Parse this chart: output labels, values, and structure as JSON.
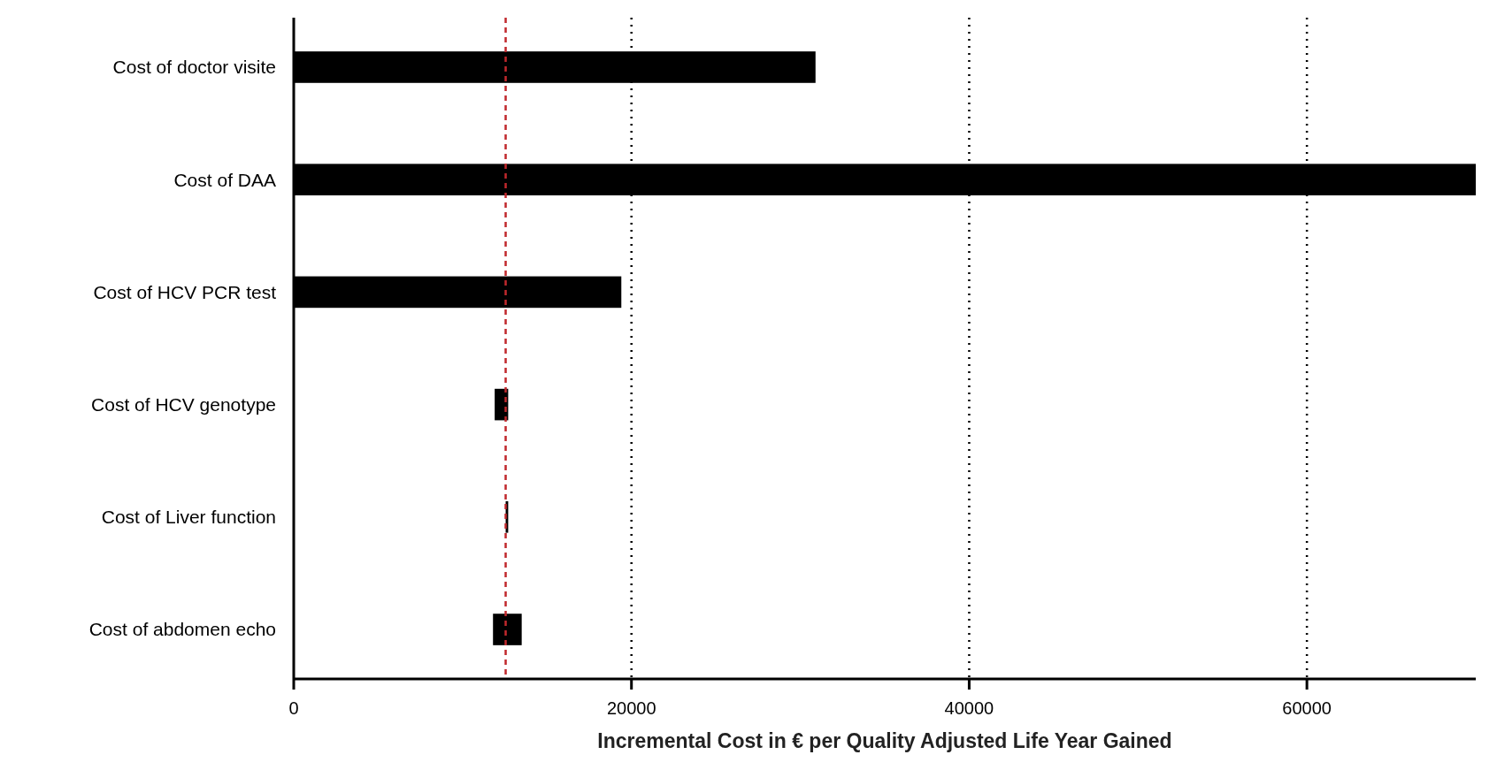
{
  "chart_data": {
    "type": "bar",
    "orientation": "horizontal",
    "categories": [
      "Cost of doctor visite",
      "Cost of DAA",
      "Cost of HCV PCR test",
      "Cost of HCV genotype",
      "Cost of Liver function",
      "Cost of abdomen echo"
    ],
    "base": [
      0,
      0,
      0,
      11900,
      12550,
      11800
    ],
    "values": [
      30900,
      70000,
      19400,
      800,
      150,
      1700
    ],
    "color": "#000000",
    "xlim": [
      0,
      70000
    ],
    "xticks": [
      0,
      20000,
      40000,
      60000
    ],
    "xlabel": "Incremental Cost in € per Quality Adjusted Life Year Gained",
    "grid": "x",
    "ref_lines": [
      {
        "axis": "x",
        "value": 12550,
        "color": "#c0282d",
        "line_style": "dashed"
      }
    ]
  }
}
